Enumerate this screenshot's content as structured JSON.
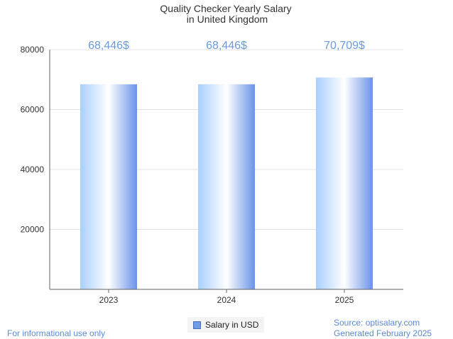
{
  "colors": {
    "bar_gradient": [
      "#a8d0ff",
      "#ffffff",
      "#6a93e8"
    ],
    "data_label": "#6a9be0",
    "footer_text": "#5b8ad6"
  },
  "chart_data": {
    "type": "bar",
    "title": "Quality Checker Yearly Salary",
    "subtitle": "in United Kingdom",
    "categories": [
      "2023",
      "2024",
      "2025"
    ],
    "series": [
      {
        "name": "Salary in USD",
        "values": [
          68446,
          68446,
          70709
        ]
      }
    ],
    "data_labels": [
      "68,446$",
      "68,446$",
      "70,709$"
    ],
    "ylim": [
      0,
      80000
    ],
    "yticks": [
      20000,
      40000,
      60000,
      80000
    ],
    "grid": true,
    "legend_position": "bottom-center"
  },
  "footer": {
    "note": "For informational use only",
    "source": "Source: optisalary.com",
    "generated": "Generated February 2025"
  }
}
